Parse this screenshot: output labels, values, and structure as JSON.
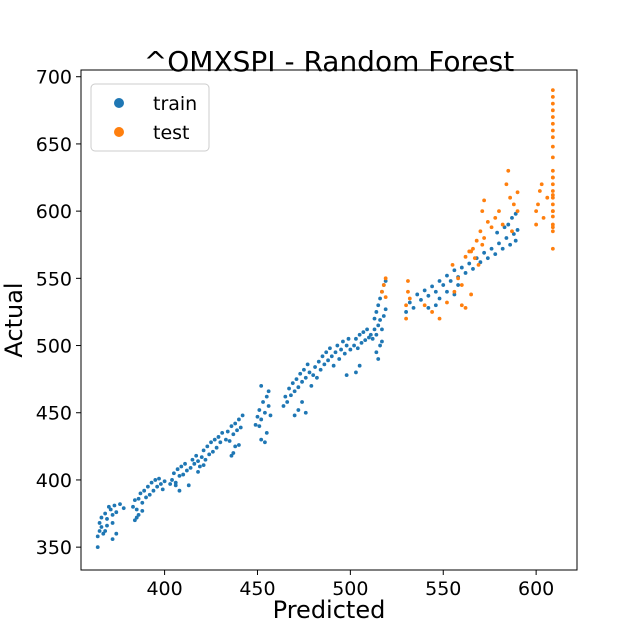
{
  "chart_data": {
    "type": "scatter",
    "title": "^OMXSPI - Random Forest",
    "xlabel": "Predicted",
    "ylabel": "Actual",
    "xlim": [
      355,
      622
    ],
    "ylim": [
      333,
      705
    ],
    "xticks": [
      400,
      450,
      500,
      550,
      600
    ],
    "yticks": [
      350,
      400,
      450,
      500,
      550,
      600,
      650,
      700
    ],
    "grid": false,
    "legend_position": "top-left",
    "series": [
      {
        "name": "train",
        "color": "#1f77b4",
        "points": [
          [
            364,
            350
          ],
          [
            364,
            358
          ],
          [
            365,
            362
          ],
          [
            365,
            368
          ],
          [
            366,
            365
          ],
          [
            366,
            372
          ],
          [
            367,
            360
          ],
          [
            368,
            375
          ],
          [
            369,
            371
          ],
          [
            370,
            380
          ],
          [
            371,
            378
          ],
          [
            372,
            374
          ],
          [
            373,
            381
          ],
          [
            374,
            376
          ],
          [
            376,
            382
          ],
          [
            378,
            379
          ],
          [
            372,
            368
          ],
          [
            369,
            366
          ],
          [
            368,
            362
          ],
          [
            372,
            356
          ],
          [
            374,
            360
          ],
          [
            383,
            380
          ],
          [
            384,
            385
          ],
          [
            385,
            378
          ],
          [
            386,
            386
          ],
          [
            387,
            390
          ],
          [
            388,
            383
          ],
          [
            389,
            392
          ],
          [
            390,
            387
          ],
          [
            391,
            395
          ],
          [
            392,
            389
          ],
          [
            393,
            398
          ],
          [
            394,
            392
          ],
          [
            395,
            400
          ],
          [
            396,
            395
          ],
          [
            397,
            401
          ],
          [
            398,
            397
          ],
          [
            399,
            393
          ],
          [
            400,
            399
          ],
          [
            384,
            370
          ],
          [
            386,
            374
          ],
          [
            388,
            377
          ],
          [
            385,
            372
          ],
          [
            404,
            400
          ],
          [
            405,
            405
          ],
          [
            406,
            398
          ],
          [
            407,
            408
          ],
          [
            408,
            403
          ],
          [
            409,
            410
          ],
          [
            410,
            404
          ],
          [
            411,
            412
          ],
          [
            412,
            407
          ],
          [
            413,
            396
          ],
          [
            414,
            409
          ],
          [
            415,
            415
          ],
          [
            416,
            412
          ],
          [
            417,
            418
          ],
          [
            418,
            414
          ],
          [
            406,
            396
          ],
          [
            408,
            392
          ],
          [
            403,
            397
          ],
          [
            420,
            417
          ],
          [
            421,
            422
          ],
          [
            422,
            415
          ],
          [
            423,
            425
          ],
          [
            424,
            419
          ],
          [
            425,
            428
          ],
          [
            426,
            421
          ],
          [
            427,
            430
          ],
          [
            428,
            424
          ],
          [
            429,
            432
          ],
          [
            430,
            428
          ],
          [
            431,
            435
          ],
          [
            421,
            411
          ],
          [
            419,
            410
          ],
          [
            418,
            406
          ],
          [
            433,
            430
          ],
          [
            434,
            436
          ],
          [
            435,
            429
          ],
          [
            436,
            440
          ],
          [
            437,
            434
          ],
          [
            438,
            442
          ],
          [
            439,
            437
          ],
          [
            440,
            445
          ],
          [
            441,
            439
          ],
          [
            442,
            448
          ],
          [
            437,
            420
          ],
          [
            436,
            418
          ],
          [
            438,
            425
          ],
          [
            440,
            426
          ],
          [
            449,
            441
          ],
          [
            450,
            447
          ],
          [
            451,
            440
          ],
          [
            451,
            452
          ],
          [
            452,
            445
          ],
          [
            453,
            458
          ],
          [
            454,
            450
          ],
          [
            455,
            462
          ],
          [
            456,
            455
          ],
          [
            457,
            448
          ],
          [
            455,
            435
          ],
          [
            454,
            428
          ],
          [
            452,
            430
          ],
          [
            456,
            466
          ],
          [
            452,
            470
          ],
          [
            464,
            455
          ],
          [
            465,
            462
          ],
          [
            466,
            458
          ],
          [
            467,
            468
          ],
          [
            468,
            463
          ],
          [
            469,
            472
          ],
          [
            470,
            466
          ],
          [
            471,
            475
          ],
          [
            472,
            469
          ],
          [
            473,
            479
          ],
          [
            474,
            473
          ],
          [
            475,
            482
          ],
          [
            476,
            476
          ],
          [
            477,
            486
          ],
          [
            478,
            480
          ],
          [
            479,
            470
          ],
          [
            470,
            448
          ],
          [
            472,
            452
          ],
          [
            474,
            458
          ],
          [
            476,
            450
          ],
          [
            480,
            478
          ],
          [
            481,
            484
          ],
          [
            482,
            476
          ],
          [
            483,
            488
          ],
          [
            484,
            482
          ],
          [
            485,
            492
          ],
          [
            486,
            486
          ],
          [
            487,
            495
          ],
          [
            488,
            489
          ],
          [
            489,
            498
          ],
          [
            490,
            492
          ],
          [
            491,
            485
          ],
          [
            492,
            495
          ],
          [
            493,
            500
          ],
          [
            494,
            490
          ],
          [
            495,
            497
          ],
          [
            496,
            503
          ],
          [
            497,
            494
          ],
          [
            498,
            500
          ],
          [
            499,
            505
          ],
          [
            500,
            497
          ],
          [
            502,
            500
          ],
          [
            503,
            505
          ],
          [
            504,
            498
          ],
          [
            505,
            508
          ],
          [
            506,
            502
          ],
          [
            507,
            510
          ],
          [
            508,
            504
          ],
          [
            509,
            512
          ],
          [
            510,
            506
          ],
          [
            511,
            508
          ],
          [
            505,
            485
          ],
          [
            503,
            480
          ],
          [
            498,
            478
          ],
          [
            512,
            505
          ],
          [
            513,
            512
          ],
          [
            513,
            520
          ],
          [
            514,
            508
          ],
          [
            514,
            525
          ],
          [
            515,
            515
          ],
          [
            515,
            530
          ],
          [
            516,
            519
          ],
          [
            516,
            535
          ],
          [
            517,
            512
          ],
          [
            517,
            540
          ],
          [
            518,
            522
          ],
          [
            518,
            545
          ],
          [
            519,
            527
          ],
          [
            519,
            548
          ],
          [
            514,
            495
          ],
          [
            515,
            490
          ],
          [
            516,
            500
          ],
          [
            517,
            503
          ],
          [
            530,
            525
          ],
          [
            532,
            532
          ],
          [
            534,
            528
          ],
          [
            536,
            538
          ],
          [
            538,
            534
          ],
          [
            540,
            541
          ],
          [
            542,
            537
          ],
          [
            544,
            544
          ],
          [
            546,
            540
          ],
          [
            548,
            548
          ],
          [
            550,
            545
          ],
          [
            552,
            552
          ],
          [
            554,
            548
          ],
          [
            556,
            556
          ],
          [
            558,
            551
          ],
          [
            560,
            558
          ],
          [
            562,
            554
          ],
          [
            564,
            561
          ],
          [
            566,
            557
          ],
          [
            568,
            565
          ],
          [
            546,
            530
          ],
          [
            548,
            535
          ],
          [
            542,
            528
          ],
          [
            552,
            540
          ],
          [
            556,
            538
          ],
          [
            558,
            545
          ],
          [
            570,
            562
          ],
          [
            572,
            569
          ],
          [
            574,
            565
          ],
          [
            576,
            572
          ],
          [
            578,
            568
          ],
          [
            580,
            576
          ],
          [
            582,
            572
          ],
          [
            584,
            580
          ],
          [
            586,
            575
          ],
          [
            588,
            583
          ],
          [
            589,
            578
          ],
          [
            590,
            586
          ],
          [
            585,
            590
          ],
          [
            587,
            595
          ],
          [
            589,
            598
          ],
          [
            583,
            588
          ],
          [
            579,
            584
          ]
        ]
      },
      {
        "name": "test",
        "color": "#ff7f0e",
        "points": [
          [
            519,
            550
          ],
          [
            518,
            545
          ],
          [
            517,
            540
          ],
          [
            519,
            536
          ],
          [
            530,
            520
          ],
          [
            530,
            530
          ],
          [
            531,
            540
          ],
          [
            531,
            548
          ],
          [
            532,
            535
          ],
          [
            540,
            530
          ],
          [
            544,
            525
          ],
          [
            548,
            520
          ],
          [
            552,
            532
          ],
          [
            556,
            540
          ],
          [
            560,
            530
          ],
          [
            562,
            528
          ],
          [
            565,
            538
          ],
          [
            560,
            545
          ],
          [
            558,
            550
          ],
          [
            555,
            560
          ],
          [
            562,
            566
          ],
          [
            564,
            570
          ],
          [
            566,
            572
          ],
          [
            568,
            578
          ],
          [
            570,
            585
          ],
          [
            572,
            580
          ],
          [
            571,
            600
          ],
          [
            572,
            608
          ],
          [
            574,
            592
          ],
          [
            576,
            588
          ],
          [
            578,
            595
          ],
          [
            580,
            600
          ],
          [
            582,
            590
          ],
          [
            584,
            620
          ],
          [
            585,
            630
          ],
          [
            586,
            610
          ],
          [
            588,
            605
          ],
          [
            590,
            614
          ],
          [
            590,
            600
          ],
          [
            587,
            585
          ],
          [
            565,
            570
          ],
          [
            567,
            565
          ],
          [
            569,
            560
          ],
          [
            571,
            575
          ],
          [
            600,
            600
          ],
          [
            601,
            605
          ],
          [
            602,
            615
          ],
          [
            603,
            620
          ],
          [
            600,
            590
          ],
          [
            604,
            595
          ],
          [
            606,
            610
          ],
          [
            609,
            572
          ],
          [
            609,
            585
          ],
          [
            609,
            590
          ],
          [
            609,
            596
          ],
          [
            609,
            600
          ],
          [
            609,
            605
          ],
          [
            609,
            610
          ],
          [
            609,
            615
          ],
          [
            609,
            620
          ],
          [
            609,
            625
          ],
          [
            609,
            630
          ],
          [
            609,
            640
          ],
          [
            609,
            648
          ],
          [
            609,
            655
          ],
          [
            609,
            660
          ],
          [
            609,
            665
          ],
          [
            609,
            670
          ],
          [
            609,
            675
          ],
          [
            609,
            680
          ],
          [
            609,
            685
          ],
          [
            609,
            690
          ],
          [
            609,
            588
          ],
          [
            609,
            612
          ],
          [
            609,
            600
          ],
          [
            609,
            625
          ]
        ]
      }
    ]
  }
}
